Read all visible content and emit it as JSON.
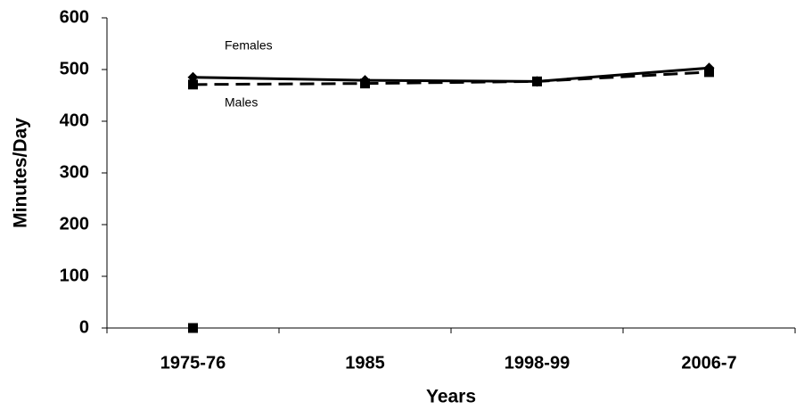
{
  "chart_data": {
    "type": "line",
    "categories": [
      "1975-76",
      "1985",
      "1998-99",
      "2006-7"
    ],
    "series": [
      {
        "name": "Females",
        "color": "#000000",
        "marker": "diamond",
        "dash": false,
        "values": [
          485,
          479,
          477,
          503
        ]
      },
      {
        "name": "Males",
        "color": "#000000",
        "marker": "square",
        "dash": true,
        "values": [
          471,
          473,
          477,
          495
        ]
      },
      {
        "color": "#000000",
        "marker": "square",
        "dash": false,
        "values": [
          0,
          null,
          null,
          null
        ]
      }
    ],
    "ylim": [
      0,
      600
    ],
    "yticks": [
      0,
      100,
      200,
      300,
      400,
      500,
      600
    ],
    "ylabel": "Minutes/Day",
    "xlabel": "Years",
    "grid": false
  }
}
